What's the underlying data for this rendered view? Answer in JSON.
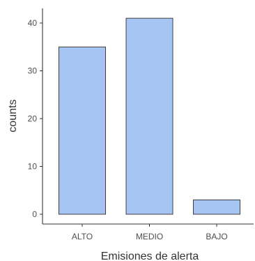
{
  "chart_data": {
    "type": "bar",
    "categories": [
      "ALTO",
      "MEDIO",
      "BAJO"
    ],
    "values": [
      35,
      41,
      3
    ],
    "xlabel": "Emisiones de alerta",
    "ylabel": "counts",
    "ylim": [
      0,
      41
    ],
    "yticks": [
      0,
      10,
      20,
      30,
      40
    ],
    "grid": false,
    "colors": {
      "bar_fill": "#a6c4f2",
      "bar_stroke": "#3d3d3d",
      "axis": "#333333"
    }
  }
}
